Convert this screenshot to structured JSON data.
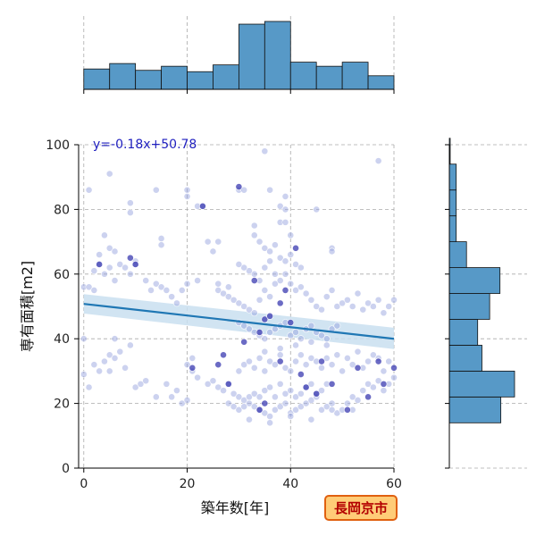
{
  "chart_data": {
    "type": "scatter",
    "xlabel": "築年数[年]",
    "ylabel": "専有面積[m2]",
    "xticks": [
      "0",
      "20",
      "40",
      "60"
    ],
    "yticks": [
      "0",
      "20",
      "40",
      "60",
      "80",
      "100"
    ],
    "xlim": [
      -1,
      60
    ],
    "ylim": [
      0,
      100
    ],
    "grid": true,
    "annotation": "y=-0.18x+50.78",
    "badge": "長岡京市",
    "regression": {
      "slope": -0.18,
      "intercept": 50.78,
      "ci_start": [
        47.8,
        53.8
      ],
      "ci_end": [
        36.8,
        43.4
      ]
    },
    "colors": {
      "points": "#9aa6e0",
      "points_dark": "#3a3ab0",
      "line": "#1f77b4",
      "band": "#c9dff0",
      "hist": "#5799c7",
      "badge_bg": "#ffcc77",
      "badge_border": "#e06010"
    },
    "x_hist": {
      "bins": [
        0,
        5,
        10,
        15,
        20,
        25,
        30,
        35,
        40,
        45,
        50,
        55,
        60
      ],
      "counts": [
        15,
        19,
        14,
        17,
        13,
        18,
        48,
        50,
        20,
        17,
        20,
        10
      ]
    },
    "y_hist": {
      "bins": [
        14,
        22,
        30,
        38,
        46,
        54,
        62,
        70,
        78,
        86,
        94,
        102
      ],
      "counts": [
        60,
        76,
        38,
        33,
        47,
        59,
        20,
        8,
        8,
        8,
        1
      ]
    },
    "points": [
      [
        0,
        56
      ],
      [
        1,
        56
      ],
      [
        2,
        55
      ],
      [
        0,
        40
      ],
      [
        0,
        29
      ],
      [
        1,
        25
      ],
      [
        3,
        30
      ],
      [
        2,
        32
      ],
      [
        4,
        33
      ],
      [
        5,
        35
      ],
      [
        6,
        34
      ],
      [
        5,
        30
      ],
      [
        8,
        31
      ],
      [
        7,
        36
      ],
      [
        6,
        40
      ],
      [
        9,
        38
      ],
      [
        10,
        25
      ],
      [
        11,
        26
      ],
      [
        12,
        27
      ],
      [
        14,
        22
      ],
      [
        16,
        26
      ],
      [
        17,
        22
      ],
      [
        18,
        24
      ],
      [
        19,
        20
      ],
      [
        20,
        21
      ],
      [
        21,
        30
      ],
      [
        20,
        32
      ],
      [
        21,
        34
      ],
      [
        22,
        28
      ],
      [
        24,
        26
      ],
      [
        25,
        27
      ],
      [
        2,
        61
      ],
      [
        3,
        63
      ],
      [
        4,
        60
      ],
      [
        5,
        62
      ],
      [
        6,
        58
      ],
      [
        7,
        63
      ],
      [
        8,
        62
      ],
      [
        9,
        60
      ],
      [
        10,
        64
      ],
      [
        10,
        63
      ],
      [
        12,
        58
      ],
      [
        13,
        55
      ],
      [
        14,
        57
      ],
      [
        15,
        56
      ],
      [
        16,
        55
      ],
      [
        17,
        53
      ],
      [
        18,
        51
      ],
      [
        19,
        55
      ],
      [
        20,
        57
      ],
      [
        22,
        58
      ],
      [
        1,
        86
      ],
      [
        5,
        91
      ],
      [
        9,
        79
      ],
      [
        9,
        82
      ],
      [
        14,
        86
      ],
      [
        15,
        71
      ],
      [
        15,
        69
      ],
      [
        20,
        86
      ],
      [
        20,
        84
      ],
      [
        22,
        81
      ],
      [
        23,
        81
      ],
      [
        24,
        70
      ],
      [
        25,
        67
      ],
      [
        26,
        70
      ],
      [
        30,
        86
      ],
      [
        31,
        86
      ],
      [
        36,
        86
      ],
      [
        35,
        98
      ],
      [
        38,
        81
      ],
      [
        39,
        84
      ],
      [
        39,
        80
      ],
      [
        45,
        80
      ],
      [
        57,
        95
      ],
      [
        4,
        72
      ],
      [
        5,
        68
      ],
      [
        3,
        66
      ],
      [
        6,
        67
      ],
      [
        26,
        57
      ],
      [
        26,
        55
      ],
      [
        27,
        54
      ],
      [
        28,
        56
      ],
      [
        28,
        53
      ],
      [
        29,
        52
      ],
      [
        30,
        51
      ],
      [
        31,
        50
      ],
      [
        32,
        49
      ],
      [
        33,
        48
      ],
      [
        34,
        52
      ],
      [
        35,
        55
      ],
      [
        36,
        53
      ],
      [
        37,
        57
      ],
      [
        38,
        58
      ],
      [
        39,
        60
      ],
      [
        40,
        57
      ],
      [
        41,
        55
      ],
      [
        42,
        56
      ],
      [
        43,
        54
      ],
      [
        44,
        52
      ],
      [
        45,
        50
      ],
      [
        46,
        49
      ],
      [
        47,
        53
      ],
      [
        48,
        55
      ],
      [
        49,
        50
      ],
      [
        50,
        51
      ],
      [
        51,
        52
      ],
      [
        52,
        50
      ],
      [
        53,
        54
      ],
      [
        54,
        49
      ],
      [
        55,
        51
      ],
      [
        56,
        50
      ],
      [
        57,
        52
      ],
      [
        58,
        48
      ],
      [
        59,
        50
      ],
      [
        60,
        52
      ],
      [
        30,
        45
      ],
      [
        31,
        44
      ],
      [
        32,
        43
      ],
      [
        33,
        42
      ],
      [
        34,
        41
      ],
      [
        35,
        40
      ],
      [
        36,
        42
      ],
      [
        37,
        43
      ],
      [
        38,
        44
      ],
      [
        39,
        45
      ],
      [
        40,
        41
      ],
      [
        41,
        42
      ],
      [
        42,
        40
      ],
      [
        43,
        43
      ],
      [
        44,
        44
      ],
      [
        45,
        42
      ],
      [
        46,
        41
      ],
      [
        47,
        40
      ],
      [
        48,
        43
      ],
      [
        49,
        44
      ],
      [
        33,
        75
      ],
      [
        33,
        72
      ],
      [
        34,
        70
      ],
      [
        35,
        68
      ],
      [
        36,
        67
      ],
      [
        37,
        69
      ],
      [
        38,
        65
      ],
      [
        39,
        64
      ],
      [
        40,
        66
      ],
      [
        41,
        63
      ],
      [
        42,
        62
      ],
      [
        35,
        62
      ],
      [
        36,
        64
      ],
      [
        37,
        60
      ],
      [
        34,
        58
      ],
      [
        33,
        60
      ],
      [
        32,
        61
      ],
      [
        31,
        62
      ],
      [
        30,
        63
      ],
      [
        38,
        76
      ],
      [
        39,
        76
      ],
      [
        40,
        72
      ],
      [
        48,
        68
      ],
      [
        48,
        67
      ],
      [
        26,
        25
      ],
      [
        27,
        24
      ],
      [
        28,
        26
      ],
      [
        29,
        23
      ],
      [
        30,
        22
      ],
      [
        31,
        21
      ],
      [
        32,
        20
      ],
      [
        33,
        19
      ],
      [
        34,
        18
      ],
      [
        35,
        17
      ],
      [
        36,
        16
      ],
      [
        37,
        18
      ],
      [
        38,
        19
      ],
      [
        39,
        20
      ],
      [
        40,
        17
      ],
      [
        41,
        18
      ],
      [
        42,
        19
      ],
      [
        43,
        20
      ],
      [
        44,
        21
      ],
      [
        45,
        22
      ],
      [
        46,
        18
      ],
      [
        47,
        19
      ],
      [
        48,
        20
      ],
      [
        49,
        17
      ],
      [
        50,
        18
      ],
      [
        51,
        20
      ],
      [
        52,
        22
      ],
      [
        53,
        21
      ],
      [
        54,
        24
      ],
      [
        55,
        26
      ],
      [
        56,
        25
      ],
      [
        57,
        27
      ],
      [
        58,
        24
      ],
      [
        59,
        26
      ],
      [
        60,
        28
      ],
      [
        28,
        20
      ],
      [
        29,
        19
      ],
      [
        30,
        18
      ],
      [
        31,
        19
      ],
      [
        32,
        22
      ],
      [
        33,
        23
      ],
      [
        34,
        22
      ],
      [
        35,
        24
      ],
      [
        36,
        25
      ],
      [
        37,
        22
      ],
      [
        38,
        26
      ],
      [
        39,
        23
      ],
      [
        40,
        24
      ],
      [
        41,
        22
      ],
      [
        42,
        23
      ],
      [
        43,
        25
      ],
      [
        44,
        26
      ],
      [
        45,
        23
      ],
      [
        46,
        24
      ],
      [
        47,
        26
      ],
      [
        30,
        30
      ],
      [
        31,
        32
      ],
      [
        32,
        33
      ],
      [
        33,
        31
      ],
      [
        34,
        34
      ],
      [
        35,
        30
      ],
      [
        36,
        33
      ],
      [
        37,
        32
      ],
      [
        38,
        35
      ],
      [
        39,
        31
      ],
      [
        40,
        30
      ],
      [
        41,
        33
      ],
      [
        42,
        35
      ],
      [
        43,
        32
      ],
      [
        44,
        34
      ],
      [
        45,
        33
      ],
      [
        46,
        31
      ],
      [
        47,
        34
      ],
      [
        48,
        32
      ],
      [
        49,
        35
      ],
      [
        50,
        30
      ],
      [
        51,
        34
      ],
      [
        52,
        32
      ],
      [
        53,
        36
      ],
      [
        54,
        31
      ],
      [
        55,
        33
      ],
      [
        56,
        35
      ],
      [
        57,
        34
      ],
      [
        58,
        30
      ],
      [
        59,
        33
      ],
      [
        32,
        15
      ],
      [
        36,
        14
      ],
      [
        40,
        16
      ],
      [
        44,
        15
      ],
      [
        48,
        18
      ],
      [
        52,
        18
      ],
      [
        35,
        36
      ],
      [
        38,
        37
      ],
      [
        41,
        38
      ],
      [
        44,
        39
      ],
      [
        47,
        38
      ]
    ],
    "dark_points": [
      [
        3,
        63
      ],
      [
        9,
        65
      ],
      [
        10,
        63
      ],
      [
        21,
        31
      ],
      [
        23,
        81
      ],
      [
        26,
        32
      ],
      [
        27,
        35
      ],
      [
        28,
        26
      ],
      [
        30,
        87
      ],
      [
        34,
        18
      ],
      [
        35,
        20
      ],
      [
        35,
        46
      ],
      [
        36,
        47
      ],
      [
        38,
        51
      ],
      [
        38,
        33
      ],
      [
        39,
        55
      ],
      [
        40,
        45
      ],
      [
        41,
        68
      ],
      [
        42,
        29
      ],
      [
        43,
        25
      ],
      [
        45,
        23
      ],
      [
        46,
        33
      ],
      [
        48,
        26
      ],
      [
        51,
        18
      ],
      [
        53,
        31
      ],
      [
        55,
        22
      ],
      [
        57,
        33
      ],
      [
        58,
        26
      ],
      [
        60,
        31
      ],
      [
        33,
        58
      ],
      [
        34,
        42
      ],
      [
        31,
        39
      ]
    ]
  }
}
